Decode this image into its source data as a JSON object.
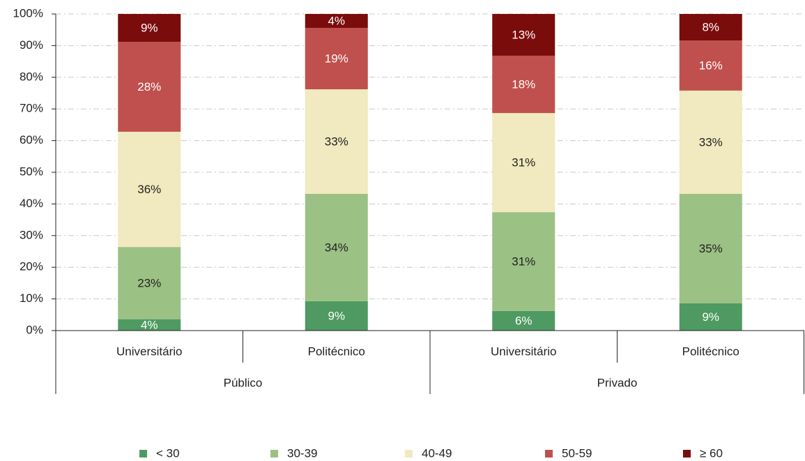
{
  "chart_data": {
    "type": "stacked-bar",
    "categories": [
      "Universitário",
      "Politécnico",
      "Universitário",
      "Politécnico"
    ],
    "groups": [
      "Público",
      "Privado"
    ],
    "series": [
      {
        "name": "< 30",
        "color": "#4e9a62",
        "values": [
          3.6,
          9.3,
          6.2,
          8.6
        ],
        "value_labels": [
          "4%",
          "9%",
          "6%",
          "9%"
        ]
      },
      {
        "name": "30-39",
        "color": "#9bc184",
        "values": [
          22.8,
          33.9,
          31.2,
          34.6
        ],
        "value_labels": [
          "23%",
          "34%",
          "31%",
          "35%"
        ]
      },
      {
        "name": "40-49",
        "color": "#f1e9bf",
        "values": [
          36.4,
          33.0,
          31.3,
          32.6
        ],
        "value_labels": [
          "36%",
          "33%",
          "31%",
          "33%"
        ]
      },
      {
        "name": "50-59",
        "color": "#c0504d",
        "values": [
          28.4,
          19.4,
          18.1,
          15.8
        ],
        "value_labels": [
          "28%",
          "19%",
          "18%",
          "16%"
        ]
      },
      {
        "name": "≥ 60",
        "color": "#7b0c0c",
        "values": [
          8.8,
          4.4,
          13.2,
          8.4
        ],
        "value_labels": [
          "9%",
          "4%",
          "13%",
          "8%"
        ]
      }
    ],
    "ylim": [
      0,
      100
    ],
    "yticks": [
      {
        "value": 0,
        "label": "0%"
      },
      {
        "value": 10,
        "label": "10%"
      },
      {
        "value": 20,
        "label": "20%"
      },
      {
        "value": 30,
        "label": "30%"
      },
      {
        "value": 40,
        "label": "40%"
      },
      {
        "value": 50,
        "label": "50%"
      },
      {
        "value": 60,
        "label": "60%"
      },
      {
        "value": 70,
        "label": "70%"
      },
      {
        "value": 80,
        "label": "80%"
      },
      {
        "value": 90,
        "label": "90%"
      },
      {
        "value": 100,
        "label": "100%"
      }
    ],
    "grid": true,
    "legend": "bottom"
  }
}
